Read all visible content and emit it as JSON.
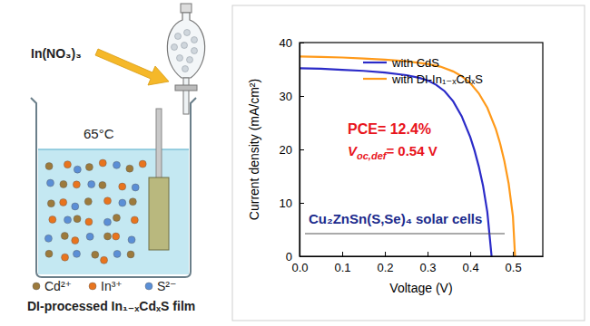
{
  "chart_data": {
    "type": "line",
    "xlabel": "Voltage (V)",
    "ylabel": "Current density (mA/cm²)",
    "xlim": [
      0,
      0.57
    ],
    "xticks": [
      {
        "value": 0,
        "label": "0.0"
      },
      0.1,
      0.2,
      0.3,
      0.4,
      0.5
    ],
    "ylim": [
      0,
      40
    ],
    "yticks": [
      0,
      10,
      20,
      30,
      40
    ],
    "grid": false,
    "legend": "upper left",
    "series": [
      {
        "name": "with CdS",
        "color": "#2b2bc8",
        "x": [
          0,
          0.05,
          0.1,
          0.15,
          0.2,
          0.25,
          0.28,
          0.3,
          0.32,
          0.34,
          0.36,
          0.38,
          0.4,
          0.41,
          0.42,
          0.43,
          0.44,
          0.45
        ],
        "values": [
          35.2,
          35.1,
          34.9,
          34.7,
          34.4,
          33.9,
          33.4,
          32.9,
          32.1,
          30.9,
          29.0,
          26.2,
          22.3,
          19.8,
          16.8,
          13.2,
          8.3,
          0
        ]
      },
      {
        "name": "with DI-In₁₋ₓCdₓS",
        "color": "#ff9a1a",
        "x": [
          0,
          0.05,
          0.1,
          0.15,
          0.2,
          0.25,
          0.3,
          0.33,
          0.36,
          0.38,
          0.4,
          0.42,
          0.44,
          0.46,
          0.47,
          0.48,
          0.49,
          0.5,
          0.505
        ],
        "values": [
          37.4,
          37.3,
          37.2,
          37.0,
          36.8,
          36.5,
          36.0,
          35.5,
          34.6,
          33.7,
          32.4,
          30.5,
          27.8,
          23.8,
          21.1,
          17.8,
          13.6,
          7.5,
          0
        ]
      }
    ],
    "annotations": [
      {
        "text": "PCE= 12.4%",
        "color": "#e8141c"
      },
      {
        "symbol": "V",
        "subscript": "oc,def",
        "text": "= 0.54 V",
        "color": "#e8141c"
      },
      {
        "text": "Cu₂ZnSn(S,Se)₄ solar cells",
        "color": "#1a2a8c"
      }
    ]
  },
  "diagram": {
    "reagent": "In(NO₃)₃",
    "temperature": "65°C",
    "ions": [
      {
        "label": "Cd²⁺",
        "color": "#9c7a3c"
      },
      {
        "label": "In³⁺",
        "color": "#e8741e"
      },
      {
        "label": "S²⁻",
        "color": "#5b8fd6"
      }
    ],
    "caption": "DI-processed In₁₋ₓCdₓS film"
  }
}
